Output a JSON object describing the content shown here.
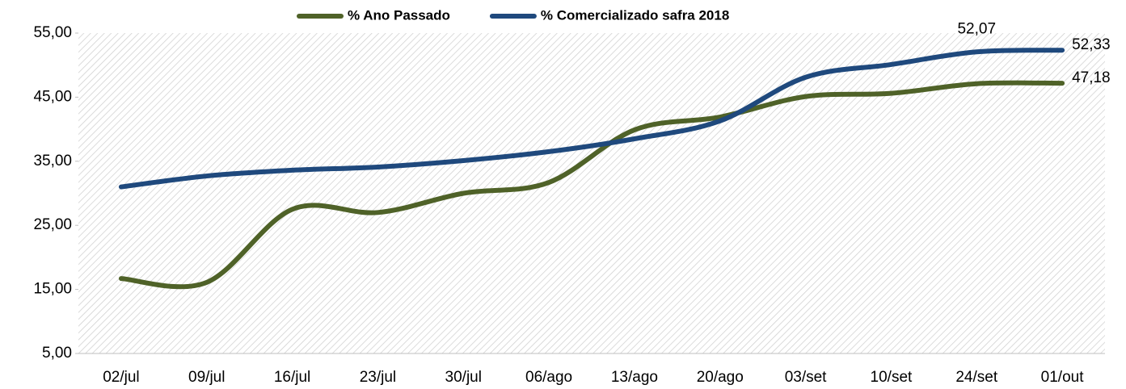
{
  "chart_data": {
    "type": "line",
    "categories": [
      "02/jul",
      "09/jul",
      "16/jul",
      "23/jul",
      "30/jul",
      "06/ago",
      "13/ago",
      "20/ago",
      "03/set",
      "10/set",
      "24/set",
      "01/out"
    ],
    "series": [
      {
        "name": "% Ano Passado",
        "color": "#4f6228",
        "values": [
          16.7,
          16.1,
          27.5,
          27.0,
          30.0,
          31.7,
          39.9,
          41.9,
          45.1,
          45.6,
          47.1,
          47.18
        ],
        "value_labels": [
          null,
          null,
          null,
          null,
          null,
          null,
          null,
          null,
          null,
          null,
          null,
          "47,18"
        ]
      },
      {
        "name": "% Comercializado safra 2018",
        "color": "#1f497d",
        "values": [
          31.0,
          32.7,
          33.6,
          34.1,
          35.1,
          36.5,
          38.5,
          41.3,
          48.1,
          50.1,
          52.07,
          52.33
        ],
        "value_labels": [
          null,
          null,
          null,
          null,
          null,
          null,
          null,
          null,
          null,
          null,
          "52,07",
          "52,33"
        ]
      }
    ],
    "ylim": [
      5,
      55
    ],
    "yticks": [
      {
        "value": 5,
        "label": "5,00"
      },
      {
        "value": 15,
        "label": "15,00"
      },
      {
        "value": 25,
        "label": "25,00"
      },
      {
        "value": 35,
        "label": "35,00"
      },
      {
        "value": 45,
        "label": "45,00"
      },
      {
        "value": 55,
        "label": "55,00"
      }
    ],
    "legend": "top"
  }
}
